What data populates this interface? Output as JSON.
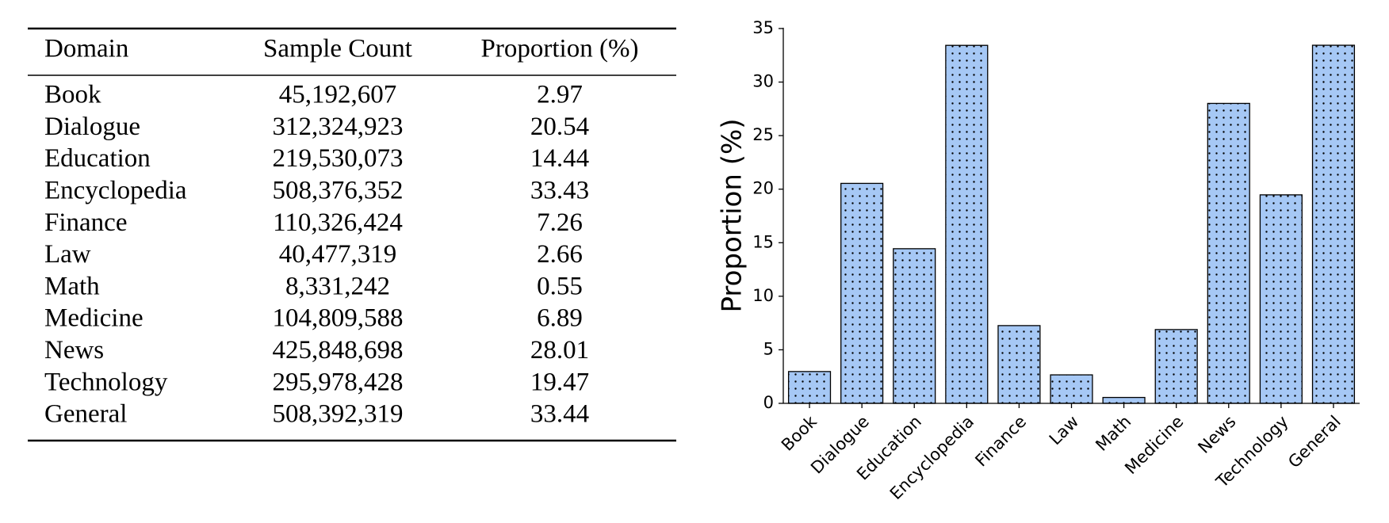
{
  "table": {
    "header": [
      "Domain",
      "Sample Count",
      "Proportion (%)"
    ],
    "rows": [
      [
        "Book",
        "45,192,607",
        "2.97"
      ],
      [
        "Dialogue",
        "312,324,923",
        "20.54"
      ],
      [
        "Education",
        "219,530,073",
        "14.44"
      ],
      [
        "Encyclopedia",
        "508,376,352",
        "33.43"
      ],
      [
        "Finance",
        "110,326,424",
        "7.26"
      ],
      [
        "Law",
        "40,477,319",
        "2.66"
      ],
      [
        "Math",
        "8,331,242",
        "0.55"
      ],
      [
        "Medicine",
        "104,809,588",
        "6.89"
      ],
      [
        "News",
        "425,848,698",
        "28.01"
      ],
      [
        "Technology",
        "295,978,428",
        "19.47"
      ],
      [
        "General",
        "508,392,319",
        "33.44"
      ]
    ]
  },
  "chart_data": {
    "type": "bar",
    "y_label": "Proportion (%)",
    "categories": [
      "Book",
      "Dialogue",
      "Education",
      "Encyclopedia",
      "Finance",
      "Law",
      "Math",
      "Medicine",
      "News",
      "Technology",
      "General"
    ],
    "values": [
      2.97,
      20.54,
      14.44,
      33.43,
      7.26,
      2.66,
      0.55,
      6.89,
      28.01,
      19.47,
      33.44
    ],
    "color": "#a6c8f5",
    "ylim": [
      0,
      35
    ],
    "yticks": [
      0,
      5,
      10,
      15,
      20,
      25,
      30,
      35
    ],
    "grid": false
  }
}
